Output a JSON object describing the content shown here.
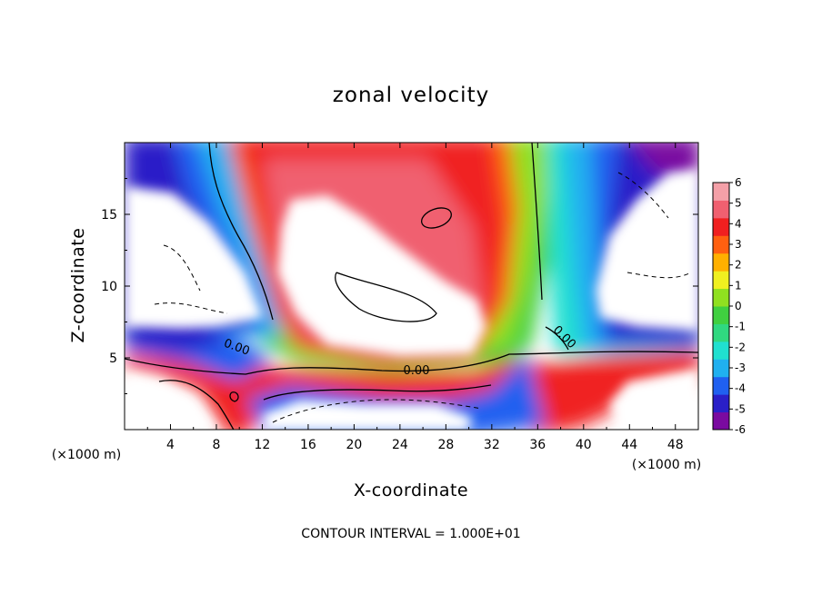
{
  "chart_data": {
    "type": "heatmap",
    "title": "zonal velocity",
    "xlabel": "X-coordinate",
    "ylabel": "Z-coordinate",
    "x_unit": "(×1000 m)",
    "z_unit": "(×1000 m)",
    "xlim": [
      0,
      50
    ],
    "ylim": [
      0,
      20
    ],
    "x_ticks": [
      "4",
      "8",
      "12",
      "16",
      "20",
      "24",
      "28",
      "32",
      "36",
      "40",
      "44",
      "48"
    ],
    "y_ticks": [
      "5",
      "10",
      "15"
    ],
    "colorbar": {
      "ticks": [
        "6",
        "5",
        "4",
        "3",
        "2",
        "1",
        "0",
        "-1",
        "-2",
        "-3",
        "-4",
        "-5",
        "-6"
      ],
      "range": [
        -6,
        6
      ],
      "colors": [
        "#7a0aa0",
        "#2a1fc8",
        "#2060f0",
        "#20b0f0",
        "#20e0d0",
        "#30d880",
        "#40d040",
        "#90e020",
        "#f0f020",
        "#ffb000",
        "#ff6010",
        "#f02020",
        "#f06070",
        "#f4a0a8"
      ]
    },
    "contour_labels": [
      "0.00",
      "0.00",
      "0.00"
    ],
    "contour_interval": "CONTOUR INTERVAL = 1.000E+01",
    "values_outside_range": "white"
  }
}
